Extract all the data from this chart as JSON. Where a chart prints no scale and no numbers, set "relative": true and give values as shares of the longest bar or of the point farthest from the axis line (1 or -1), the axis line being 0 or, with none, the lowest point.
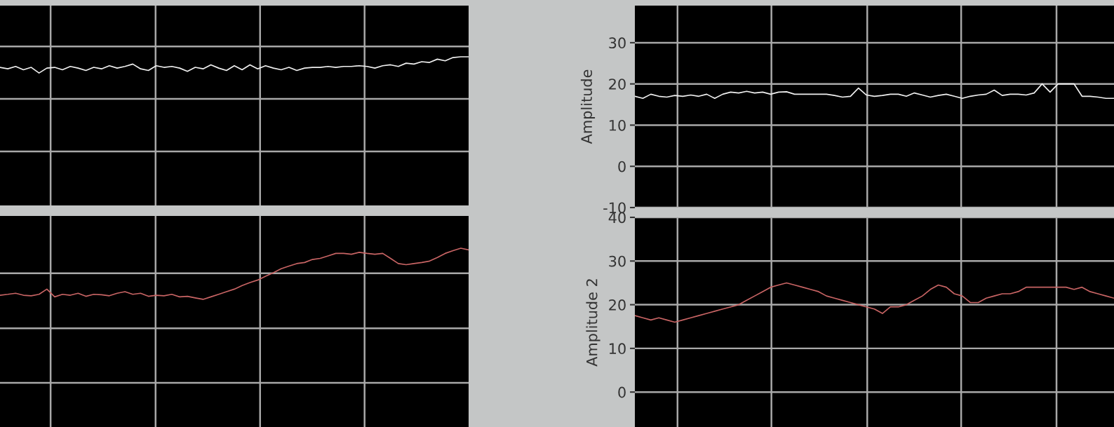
{
  "chart_data": [
    {
      "type": "line",
      "relative": true,
      "categories": [
        null,
        null,
        null,
        null,
        null,
        null,
        null,
        null,
        null,
        null,
        null,
        null,
        null,
        null,
        null,
        null,
        null,
        null,
        null,
        null,
        null,
        null,
        null,
        null,
        null,
        null,
        null,
        null,
        null,
        null,
        null,
        null,
        null,
        null,
        null,
        null,
        null,
        null,
        null,
        null,
        null,
        null,
        null,
        null,
        null,
        null,
        null,
        null,
        null,
        null,
        null,
        null,
        null,
        null,
        null,
        null,
        null,
        null,
        null,
        null,
        null
      ],
      "grid": true,
      "tick_labels": false,
      "series": [
        {
          "color": "#f0f0f0",
          "values": [
            0.929,
            0.919,
            0.935,
            0.913,
            0.929,
            0.891,
            0.924,
            0.929,
            0.913,
            0.935,
            0.924,
            0.908,
            0.929,
            0.919,
            0.94,
            0.924,
            0.935,
            0.951,
            0.919,
            0.908,
            0.94,
            0.929,
            0.935,
            0.924,
            0.902,
            0.929,
            0.919,
            0.946,
            0.924,
            0.908,
            0.94,
            0.913,
            0.946,
            0.919,
            0.94,
            0.924,
            0.913,
            0.929,
            0.908,
            0.924,
            0.929,
            0.929,
            0.935,
            0.929,
            0.935,
            0.935,
            0.94,
            0.935,
            0.924,
            0.94,
            0.946,
            0.935,
            0.957,
            0.951,
            0.967,
            0.962,
            0.984,
            0.973,
            0.995,
            1.0,
            1.0
          ]
        }
      ]
    },
    {
      "type": "line",
      "ylabel": "Amplitude",
      "categories": [
        null,
        null,
        null,
        null,
        null,
        null,
        null,
        null,
        null,
        null,
        null,
        null,
        null,
        null,
        null,
        null,
        null,
        null,
        null,
        null,
        null,
        null,
        null,
        null,
        null,
        null,
        null,
        null,
        null,
        null,
        null,
        null,
        null,
        null,
        null,
        null,
        null,
        null,
        null,
        null,
        null,
        null,
        null,
        null,
        null,
        null,
        null,
        null,
        null,
        null,
        null,
        null,
        null,
        null,
        null,
        null,
        null,
        null,
        null,
        null,
        null
      ],
      "ylim": [
        -10,
        39
      ],
      "yticks": [
        -10,
        0,
        10,
        20,
        30
      ],
      "grid": true,
      "tick_labels": "y",
      "series": [
        {
          "color": "#f0f0f0",
          "values": [
            17,
            16.5,
            17.5,
            17,
            16.8,
            17.2,
            17,
            17.3,
            17,
            17.5,
            16.5,
            17.5,
            18,
            17.8,
            18.2,
            17.8,
            18,
            17.5,
            18,
            18.1,
            17.5,
            17.5,
            17.5,
            17.5,
            17.5,
            17.2,
            16.8,
            17,
            19,
            17.3,
            17,
            17.2,
            17.5,
            17.5,
            17,
            17.8,
            17.3,
            16.8,
            17.2,
            17.5,
            17,
            16.5,
            17,
            17.3,
            17.5,
            18.5,
            17.2,
            17.5,
            17.5,
            17.3,
            17.8,
            20,
            18,
            20,
            20,
            20,
            17,
            17,
            16.8,
            16.5,
            16.5
          ]
        }
      ]
    },
    {
      "type": "line",
      "relative": true,
      "categories": [
        null,
        null,
        null,
        null,
        null,
        null,
        null,
        null,
        null,
        null,
        null,
        null,
        null,
        null,
        null,
        null,
        null,
        null,
        null,
        null,
        null,
        null,
        null,
        null,
        null,
        null,
        null,
        null,
        null,
        null,
        null,
        null,
        null,
        null,
        null,
        null,
        null,
        null,
        null,
        null,
        null,
        null,
        null,
        null,
        null,
        null,
        null,
        null,
        null,
        null,
        null,
        null,
        null,
        null,
        null,
        null,
        null,
        null,
        null,
        null,
        null
      ],
      "grid": true,
      "tick_labels": false,
      "series": [
        {
          "color": "#c86464",
          "values": [
            0.737,
            0.742,
            0.748,
            0.737,
            0.734,
            0.742,
            0.771,
            0.728,
            0.742,
            0.737,
            0.748,
            0.731,
            0.742,
            0.74,
            0.734,
            0.748,
            0.757,
            0.742,
            0.748,
            0.731,
            0.737,
            0.734,
            0.742,
            0.728,
            0.731,
            0.722,
            0.714,
            0.728,
            0.742,
            0.757,
            0.771,
            0.791,
            0.808,
            0.822,
            0.843,
            0.863,
            0.885,
            0.9,
            0.914,
            0.92,
            0.937,
            0.943,
            0.957,
            0.971,
            0.971,
            0.966,
            0.977,
            0.971,
            0.966,
            0.971,
            0.943,
            0.914,
            0.908,
            0.914,
            0.92,
            0.928,
            0.948,
            0.971,
            0.986,
            1.0,
            0.991
          ]
        }
      ]
    },
    {
      "type": "line",
      "ylabel": "Amplitude 2",
      "categories": [
        null,
        null,
        null,
        null,
        null,
        null,
        null,
        null,
        null,
        null,
        null,
        null,
        null,
        null,
        null,
        null,
        null,
        null,
        null,
        null,
        null,
        null,
        null,
        null,
        null,
        null,
        null,
        null,
        null,
        null,
        null,
        null,
        null,
        null,
        null,
        null,
        null,
        null,
        null,
        null,
        null,
        null,
        null,
        null,
        null,
        null,
        null,
        null,
        null,
        null,
        null,
        null,
        null,
        null,
        null,
        null,
        null,
        null,
        null,
        null,
        null
      ],
      "ylim": [
        -8,
        40
      ],
      "yticks": [
        0,
        10,
        20,
        30,
        40
      ],
      "grid": true,
      "tick_labels": "y",
      "series": [
        {
          "color": "#c86464",
          "values": [
            17.5,
            17,
            16.5,
            17,
            16.5,
            16,
            16.5,
            17,
            17.5,
            18,
            18.5,
            19,
            19.5,
            20,
            21,
            22,
            23,
            24,
            24.5,
            25,
            24.5,
            24,
            23.5,
            23,
            22,
            21.5,
            21,
            20.5,
            20,
            19.5,
            19,
            18,
            19.5,
            19.5,
            20,
            21,
            22,
            23.5,
            24.5,
            24,
            22.5,
            22,
            20.5,
            20.5,
            21.5,
            22,
            22.5,
            22.5,
            23,
            24,
            24,
            24,
            24,
            24,
            24,
            23.5,
            24,
            23,
            22.5,
            22,
            21.5
          ]
        }
      ]
    }
  ]
}
